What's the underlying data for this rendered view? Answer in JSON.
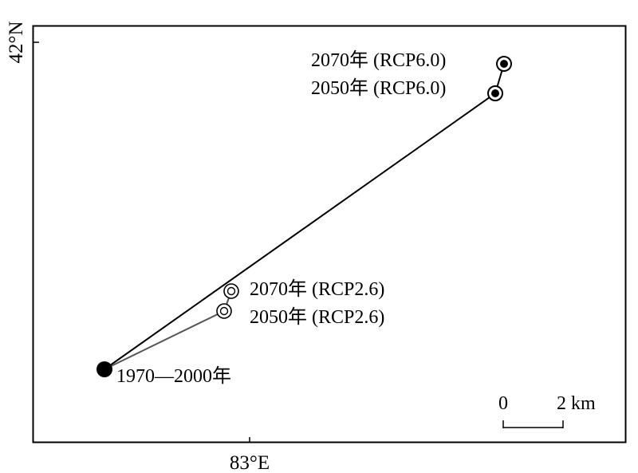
{
  "axes": {
    "lat_label": "42°N",
    "lon_label": "83°E"
  },
  "points": [
    {
      "id": "baseline",
      "label": "1970—2000年",
      "marker": "filled-dot"
    },
    {
      "id": "rcp26-2050",
      "label": "2050年 (RCP2.6)",
      "marker": "hollow-ring"
    },
    {
      "id": "rcp26-2070",
      "label": "2070年 (RCP2.6)",
      "marker": "hollow-ring"
    },
    {
      "id": "rcp60-2050",
      "label": "2050年 (RCP6.0)",
      "marker": "ring-dot"
    },
    {
      "id": "rcp60-2070",
      "label": "2070年 (RCP6.0)",
      "marker": "ring-dot"
    }
  ],
  "tracks": [
    {
      "name": "RCP6.0",
      "color": "#000000"
    },
    {
      "name": "RCP2.6",
      "color": "#555555"
    }
  ],
  "scale_bar": {
    "start_label": "0",
    "end_label": "2 km"
  }
}
